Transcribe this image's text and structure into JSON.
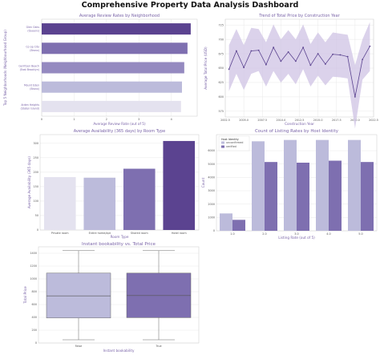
{
  "dashboard_title": "Comprehensive Property Data Analysis Dashboard",
  "colors": {
    "dark": "#5b4390",
    "mid": "#7e6fb0",
    "light": "#bcbbdb",
    "pale": "#e4e2ef",
    "title": "#7a64a8"
  },
  "chart_data": [
    {
      "type": "bar",
      "orientation": "horizontal",
      "title": "Average Review Rates by Neighborhood",
      "xlabel": "Average Review Rate (out of 5)",
      "ylabel": "Top 5 Neighborhoods (Neighbourhood Group)",
      "categories": [
        "Glen Oaks (Queens)",
        "Co-op City (Bronx)",
        "Gerritsen Beach (East Brooklyn)",
        "Mount Eden (Bronx)",
        "Arden Heights (Staten Island)"
      ],
      "values": [
        4.6,
        4.5,
        4.4,
        4.33,
        4.3
      ],
      "xticks": [
        "0",
        "1",
        "2",
        "3",
        "4"
      ],
      "xlim": [
        0,
        4.8
      ]
    },
    {
      "type": "line",
      "title": "Trend of Total Price by Construction Year",
      "xlabel": "Construction Year",
      "ylabel": "Average Total Price (USD)",
      "x": [
        2003,
        2004,
        2005,
        2006,
        2007,
        2008,
        2009,
        2010,
        2011,
        2012,
        2013,
        2014,
        2015,
        2016,
        2017,
        2018,
        2019,
        2020,
        2021,
        2022
      ],
      "y": [
        648,
        680,
        651,
        680,
        681,
        656,
        686,
        662,
        678,
        662,
        686,
        655,
        675,
        657,
        674,
        673,
        670,
        600,
        665,
        688
      ],
      "ci_low": [
        610,
        640,
        612,
        640,
        645,
        618,
        645,
        625,
        640,
        622,
        648,
        618,
        637,
        620,
        635,
        634,
        632,
        545,
        630,
        645
      ],
      "ci_high": [
        690,
        718,
        690,
        720,
        718,
        695,
        726,
        700,
        716,
        700,
        726,
        692,
        712,
        695,
        712,
        710,
        708,
        655,
        700,
        730
      ],
      "xticks": [
        "2002.5",
        "2005.0",
        "2007.5",
        "2010.0",
        "2012.5",
        "2015.0",
        "2017.5",
        "2020.0",
        "2022.5"
      ],
      "yticks": [
        "575",
        "600",
        "625",
        "650",
        "675",
        "700",
        "725"
      ],
      "xlim": [
        2002.5,
        2022.5
      ],
      "ylim": [
        565,
        735
      ]
    },
    {
      "type": "bar",
      "title": "Average Availability (365 days) by Room Type",
      "xlabel": "Room Type",
      "ylabel": "Average Availability (365 days)",
      "categories": [
        "Private room",
        "Entire home/apt",
        "Shared room",
        "Hotel room"
      ],
      "values": [
        183,
        181,
        212,
        308
      ],
      "yticks": [
        "0",
        "50",
        "100",
        "150",
        "200",
        "250",
        "300"
      ],
      "ylim": [
        0,
        330
      ]
    },
    {
      "type": "bar",
      "title": "Count of Listing Rates by Host Identity",
      "xlabel": "Listing Rate (out of 5)",
      "ylabel": "Count",
      "legend_title": "Host Identity",
      "legend_position": "top-left",
      "categories": [
        "1.0",
        "2.0",
        "3.0",
        "4.0",
        "5.0"
      ],
      "series": [
        {
          "name": "unconfirmed",
          "values": [
            1300,
            6700,
            6800,
            6800,
            6800
          ]
        },
        {
          "name": "verified",
          "values": [
            820,
            5150,
            5100,
            5250,
            5150
          ]
        }
      ],
      "yticks": [
        "0",
        "1000",
        "2000",
        "3000",
        "4000",
        "5000",
        "6000"
      ],
      "ylim": [
        0,
        7200
      ]
    },
    {
      "type": "box",
      "title": "Instant bookability vs. Total Price",
      "xlabel": "Instant bookability",
      "ylabel": "Total Price",
      "categories": [
        "False",
        "True"
      ],
      "boxes": [
        {
          "min": 50,
          "q1": 390,
          "median": 735,
          "q3": 1090,
          "max": 1440
        },
        {
          "min": 50,
          "q1": 395,
          "median": 740,
          "q3": 1090,
          "max": 1440
        }
      ],
      "yticks": [
        "0",
        "200",
        "400",
        "600",
        "800",
        "1000",
        "1200",
        "1400"
      ],
      "ylim": [
        0,
        1500
      ]
    }
  ]
}
